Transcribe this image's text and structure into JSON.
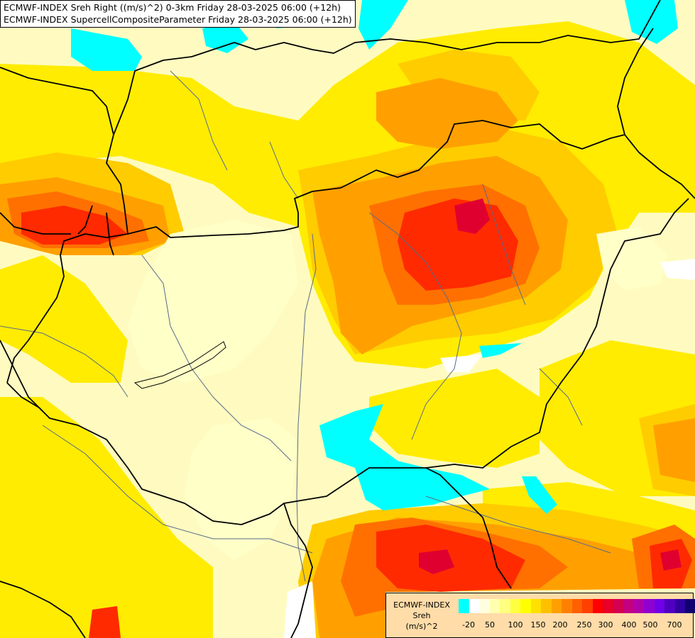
{
  "title": {
    "line1": "ECMWF-INDEX Sreh Right ((m/s)^2) 0-3km Friday 28-03-2025 06:00 (+12h)",
    "line2": "ECMWF-INDEX SupercellCompositeParameter Friday 28-03-2025 06:00 (+12h)"
  },
  "legend": {
    "source": "ECMWF-INDEX",
    "variable": "Sreh",
    "unit": "(m/s)^2",
    "colors": [
      "#00ffff",
      "#ffffff",
      "#ffffe0",
      "#ffffb0",
      "#ffff80",
      "#ffff40",
      "#ffff00",
      "#ffe000",
      "#ffc000",
      "#ffa000",
      "#ff8000",
      "#ff6000",
      "#ff4000",
      "#ff0000",
      "#e8002a",
      "#d40050",
      "#c40080",
      "#b000a8",
      "#9000d0",
      "#7000e8",
      "#5000c0",
      "#3000a0",
      "#100070"
    ],
    "ticks": [
      "-20",
      "50",
      "100",
      "150",
      "200",
      "250",
      "300",
      "400",
      "500",
      "700"
    ]
  },
  "map": {
    "colors": {
      "cyan": "#00ffff",
      "white": "#ffffff",
      "cream": "#ffffc8",
      "pale_yellow": "#ffff90",
      "yellow": "#ffff00",
      "gold": "#ffd000",
      "orange": "#ffa000",
      "dark_orange": "#ff7800",
      "orange_red": "#ff4000",
      "red": "#ff1000",
      "crimson": "#e00030",
      "magenta": "#c00060",
      "border": "#000000",
      "river": "#5a6a8a"
    }
  }
}
